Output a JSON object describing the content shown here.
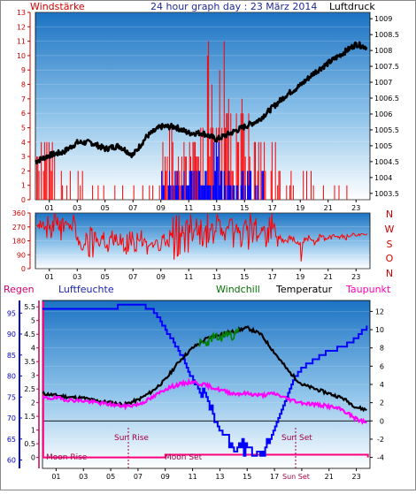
{
  "title": "24 hour graph day : 23 März 2014",
  "chart_data": [
    {
      "type": "line",
      "panel": "wind-pressure",
      "labels": {
        "left": "Windstärke",
        "right": "Luftdruck"
      },
      "x_ticks": [
        "01",
        "03",
        "05",
        "07",
        "09",
        "11",
        "13",
        "15",
        "17",
        "19",
        "21",
        "23"
      ],
      "y_left_ticks": [
        0,
        1,
        2,
        3,
        4,
        5,
        6,
        7,
        8,
        9,
        10,
        11,
        12,
        13
      ],
      "y_right_ticks": [
        1003.5,
        1004,
        1004.5,
        1005,
        1005.5,
        1006,
        1006.5,
        1007,
        1007.5,
        1008,
        1008.5,
        1009
      ],
      "xlim": [
        0,
        24
      ],
      "ylim_left": [
        0,
        13
      ],
      "ylim_right": [
        1003.3,
        1009.2
      ],
      "colors": {
        "pressure": "#000000",
        "gust": "#ff0000",
        "wind": "#0000ff"
      },
      "series": [
        {
          "axis": "right",
          "role": "pressure",
          "x": [
            0,
            1,
            2,
            3,
            4,
            5,
            6,
            7,
            8,
            9,
            10,
            11,
            12,
            13,
            14,
            15,
            16,
            17,
            18,
            19,
            20,
            21,
            22,
            23,
            23.8
          ],
          "values": [
            1004.5,
            1004.7,
            1004.8,
            1005.1,
            1005.1,
            1004.9,
            1005.0,
            1004.7,
            1005.3,
            1005.6,
            1005.6,
            1005.4,
            1005.4,
            1005.2,
            1005.4,
            1005.6,
            1005.8,
            1006.2,
            1006.6,
            1006.9,
            1007.3,
            1007.6,
            1007.9,
            1008.2,
            1008.1
          ]
        }
      ]
    },
    {
      "type": "line",
      "panel": "wind-direction",
      "labels": {
        "directions": [
          "N",
          "W",
          "S",
          "O",
          "N"
        ]
      },
      "x_ticks": [
        "01",
        "03",
        "05",
        "07",
        "09",
        "11",
        "13",
        "15",
        "17",
        "19",
        "21",
        "23"
      ],
      "y_ticks": [
        0,
        90,
        180,
        270,
        360
      ],
      "xlim": [
        0,
        24
      ],
      "ylim": [
        0,
        360
      ],
      "colors": {
        "direction": "#ff0000"
      }
    },
    {
      "type": "line",
      "panel": "temperature-humidity",
      "labels": {
        "rain": "Regen",
        "humidity": "Luftfeuchte",
        "windchill": "Windchill",
        "temperature": "Temperatur",
        "dewpoint": "Taupunkt",
        "moonrise": "Moon Rise",
        "sunrise": "Sun Rise",
        "moonset": "Moon Set",
        "sunset": "Sun Set",
        "sunset_axis": "Sun Set"
      },
      "x_ticks": [
        "01",
        "03",
        "05",
        "07",
        "09",
        "11",
        "13",
        "15",
        "17",
        "19",
        "21",
        "23"
      ],
      "y_humidity_ticks": [
        60,
        65,
        70,
        75,
        80,
        85,
        90,
        95
      ],
      "y_rain_ticks": [
        0,
        0.5,
        1,
        1.5,
        2,
        2.5,
        3,
        3.5,
        4,
        4.5,
        5,
        5.5
      ],
      "y_right_ticks": [
        -4,
        -2,
        0,
        2,
        4,
        6,
        8,
        10,
        12
      ],
      "xlim": [
        0,
        24
      ],
      "ylim_right": [
        -5.2,
        13.2
      ],
      "ylim_humidity": [
        58,
        98
      ],
      "colors": {
        "humidity": "#0000ff",
        "temperature": "#000000",
        "dewpoint": "#ff00ff",
        "windchill": "#008000",
        "rain": "#ff0080"
      },
      "series": [
        {
          "name": "Temperatur",
          "axis": "right",
          "x": [
            0,
            1,
            2,
            3,
            4,
            5,
            6,
            7,
            8,
            9,
            10,
            11,
            12,
            13,
            14,
            15,
            16,
            17,
            18,
            19,
            20,
            21,
            22,
            23,
            23.8
          ],
          "values": [
            3.0,
            2.8,
            2.6,
            2.5,
            2.2,
            2.0,
            1.8,
            2.3,
            3.2,
            4.5,
            6.5,
            8.0,
            9.0,
            9.5,
            9.8,
            10.2,
            9.5,
            7.5,
            5.5,
            4.0,
            3.5,
            3.0,
            2.5,
            1.5,
            1.2
          ]
        },
        {
          "name": "Taupunkt",
          "axis": "right",
          "x": [
            0,
            1,
            2,
            3,
            4,
            5,
            6,
            7,
            8,
            9,
            10,
            11,
            12,
            13,
            14,
            15,
            16,
            17,
            18,
            19,
            20,
            21,
            22,
            23,
            23.8
          ],
          "values": [
            2.5,
            2.5,
            2.3,
            2.2,
            2.0,
            1.8,
            1.6,
            1.8,
            2.5,
            3.5,
            4.0,
            4.3,
            3.9,
            3.4,
            3.0,
            3.0,
            2.8,
            3.0,
            2.4,
            2.0,
            1.8,
            1.6,
            1.2,
            0.2,
            -0.2
          ]
        },
        {
          "name": "Luftfeuchte",
          "axis": "humidity",
          "x": [
            0,
            1,
            2,
            3,
            4,
            5,
            6,
            7,
            8,
            8.5,
            9,
            10,
            11,
            12,
            12.5,
            13,
            13.5,
            14,
            14.5,
            15,
            15.5,
            16,
            16.5,
            17,
            17.5,
            18,
            18.5,
            19,
            20,
            21,
            22,
            23,
            23.8
          ],
          "values": [
            96,
            96,
            96,
            96,
            96,
            96,
            97,
            97,
            96,
            94,
            91,
            86,
            79,
            74,
            70,
            67,
            65,
            63,
            64,
            62,
            62,
            60,
            64,
            68,
            72,
            76,
            80,
            82,
            84,
            86,
            87,
            89,
            92
          ]
        },
        {
          "name": "Windchill",
          "axis": "right",
          "x": [
            11.5,
            12,
            12.5,
            13,
            13.5,
            14,
            14.5
          ],
          "values": [
            8.5,
            8.5,
            9.2,
            9.0,
            9.6,
            9.3,
            10.0
          ]
        }
      ]
    }
  ]
}
